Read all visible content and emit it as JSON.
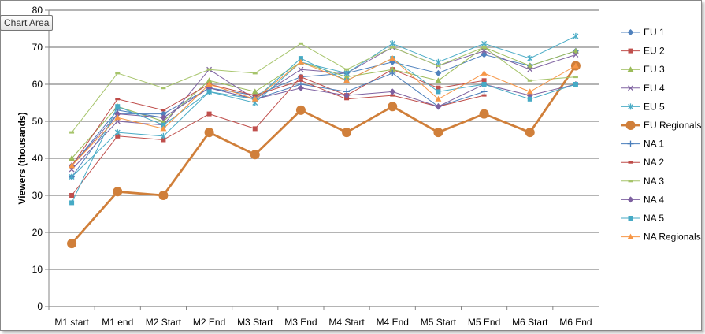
{
  "tooltip": "Chart Area",
  "chart_data": {
    "type": "line",
    "ylabel": "Viewers (thousands)",
    "xlabel": "",
    "ylim": [
      0,
      80
    ],
    "yticks": [
      0,
      10,
      20,
      30,
      40,
      50,
      60,
      70,
      80
    ],
    "grid": true,
    "legend_position": "right",
    "categories": [
      "M1 start",
      "M1 end",
      "M2 Start",
      "M2 End",
      "M3 Start",
      "M3 End",
      "M4 Start",
      "M4 End",
      "M5 Start",
      "M5 End",
      "M6 Start",
      "M6 End"
    ],
    "series": [
      {
        "name": "EU 1",
        "color": "#4F81BD",
        "marker": "diamond",
        "values": [
          35,
          52,
          52,
          59,
          57,
          62,
          63,
          66,
          63,
          68,
          65,
          69
        ]
      },
      {
        "name": "EU 2",
        "color": "#C0504D",
        "marker": "square",
        "values": [
          30,
          46,
          45,
          52,
          48,
          62,
          57,
          64,
          59,
          61,
          null,
          null
        ]
      },
      {
        "name": "EU 3",
        "color": "#9BBB59",
        "marker": "triangle",
        "values": [
          40,
          54,
          50,
          61,
          58,
          66,
          62,
          64,
          61,
          70,
          65,
          69
        ]
      },
      {
        "name": "EU 4",
        "color": "#8064A2",
        "marker": "x",
        "values": [
          37,
          50,
          49,
          64,
          56,
          64,
          63,
          70,
          65,
          69,
          64,
          68
        ]
      },
      {
        "name": "EU 5",
        "color": "#4BACC6",
        "marker": "star",
        "values": [
          35,
          47,
          46,
          58,
          55,
          66,
          63,
          71,
          66,
          71,
          67,
          73
        ]
      },
      {
        "name": "EU Regionals",
        "color": "#D07F3A",
        "marker": "circle",
        "thick": true,
        "values": [
          17,
          31,
          30,
          47,
          41,
          53,
          47,
          54,
          47,
          52,
          47,
          65
        ]
      },
      {
        "name": "NA 1",
        "color": "#4A7EBB",
        "marker": "plus",
        "values": [
          38,
          53,
          51,
          59,
          56,
          60,
          58,
          63,
          54,
          58,
          null,
          null
        ]
      },
      {
        "name": "NA 2",
        "color": "#BE4B48",
        "marker": "dash",
        "values": [
          38,
          56,
          53,
          60,
          57,
          61,
          56,
          57,
          54,
          57,
          null,
          null
        ]
      },
      {
        "name": "NA 3",
        "color": "#A6C46A",
        "marker": "dash",
        "values": [
          47,
          63,
          59,
          64,
          63,
          71,
          64,
          70,
          65,
          70,
          61,
          62
        ]
      },
      {
        "name": "NA 4",
        "color": "#7D60A0",
        "marker": "diamond",
        "values": [
          38,
          52,
          51,
          59,
          56,
          59,
          57,
          58,
          54,
          60,
          57,
          60
        ]
      },
      {
        "name": "NA 5",
        "color": "#46AAC5",
        "marker": "square",
        "values": [
          28,
          54,
          49,
          58,
          56,
          67,
          61,
          67,
          58,
          60,
          56,
          60
        ]
      },
      {
        "name": "NA Regionals",
        "color": "#F79646",
        "marker": "triangle",
        "values": [
          38,
          51,
          48,
          60,
          56,
          66,
          61,
          67,
          56,
          63,
          58,
          65
        ]
      }
    ]
  }
}
